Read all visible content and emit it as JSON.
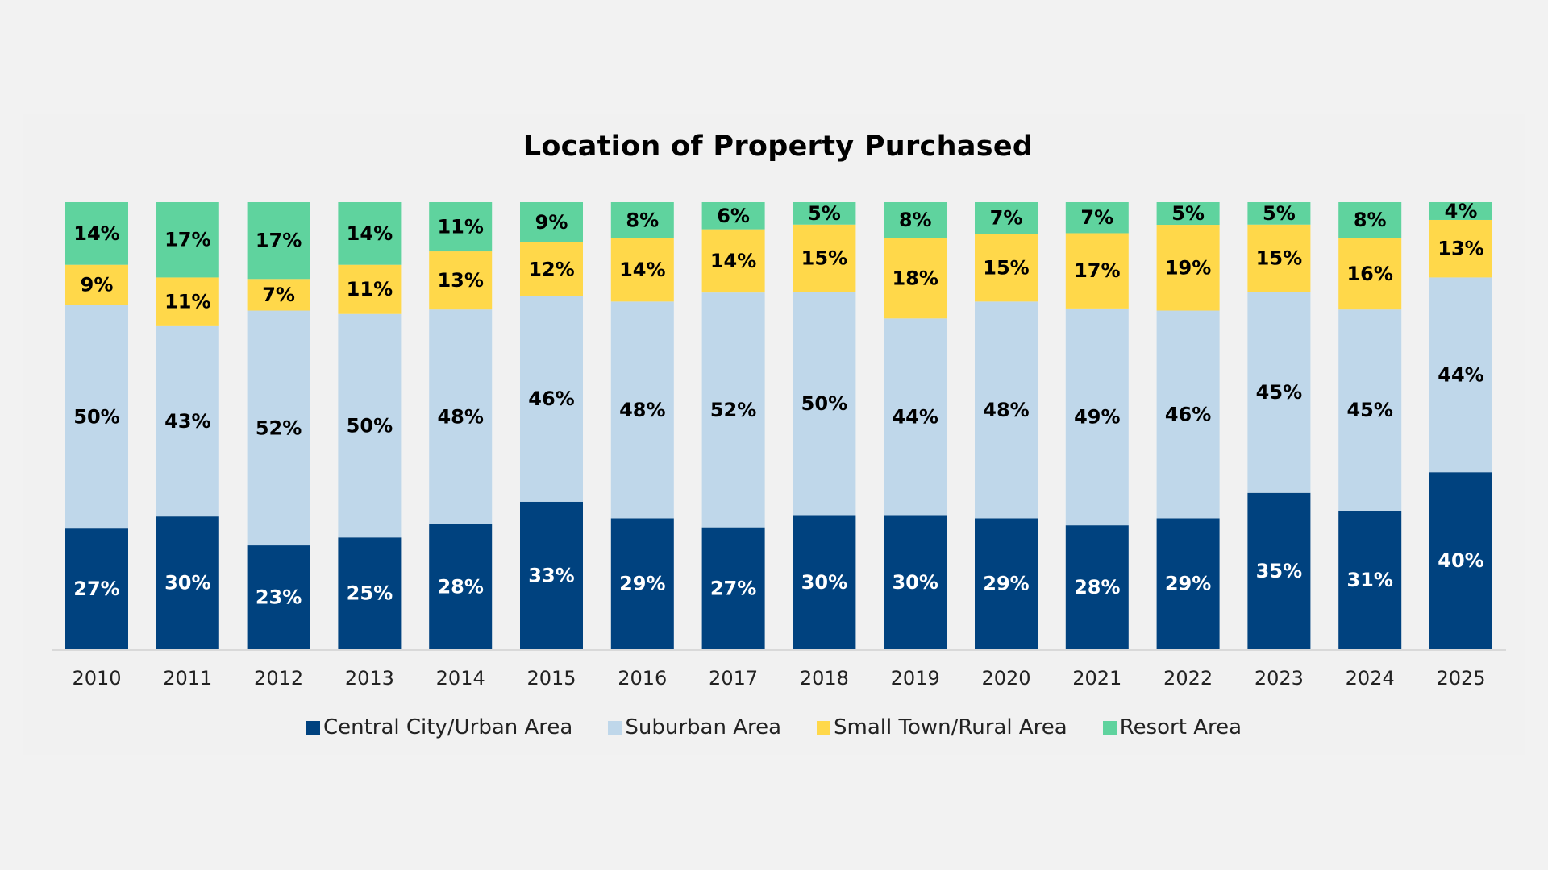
{
  "chart_data": {
    "type": "bar",
    "stacked": true,
    "title": "Location of Property Purchased",
    "xlabel": "",
    "ylabel": "",
    "ylim": [
      0,
      100
    ],
    "grid": false,
    "legend_position": "bottom",
    "categories": [
      "2010",
      "2011",
      "2012",
      "2013",
      "2014",
      "2015",
      "2016",
      "2017",
      "2018",
      "2019",
      "2020",
      "2021",
      "2022",
      "2023",
      "2024",
      "2025"
    ],
    "series": [
      {
        "name": "Central City/Urban Area",
        "color": "#00427F",
        "label_color": "#FFFFFF",
        "values": [
          27,
          30,
          23,
          25,
          28,
          33,
          29,
          27,
          30,
          30,
          29,
          28,
          29,
          35,
          31,
          40
        ]
      },
      {
        "name": "Suburban Area",
        "color": "#BFD7EA",
        "label_color": "#000000",
        "values": [
          50,
          43,
          52,
          50,
          48,
          46,
          48,
          52,
          50,
          44,
          48,
          49,
          46,
          45,
          45,
          44
        ]
      },
      {
        "name": "Small Town/Rural Area",
        "color": "#FFD84A",
        "label_color": "#000000",
        "values": [
          9,
          11,
          7,
          11,
          13,
          12,
          14,
          14,
          15,
          18,
          15,
          17,
          19,
          15,
          16,
          13
        ]
      },
      {
        "name": "Resort Area",
        "color": "#5FD39E",
        "label_color": "#000000",
        "values": [
          14,
          17,
          17,
          14,
          11,
          9,
          8,
          6,
          5,
          8,
          7,
          7,
          5,
          5,
          8,
          4
        ]
      }
    ],
    "value_suffix": "%"
  }
}
